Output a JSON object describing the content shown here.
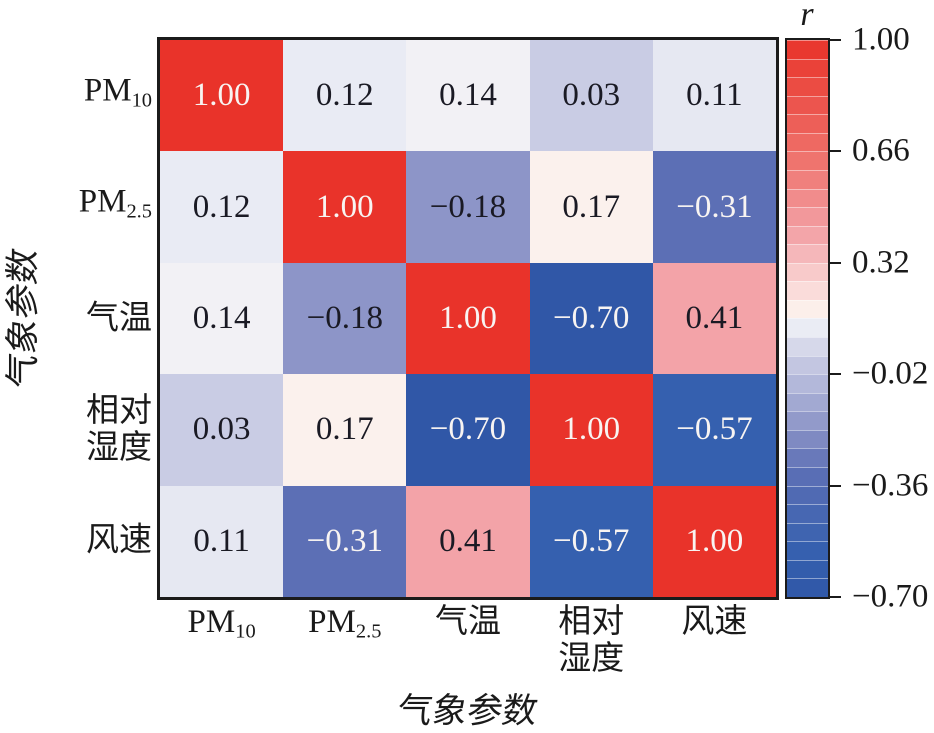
{
  "figure": {
    "background": "#ffffff",
    "colors": {
      "border": "#1b1b1b",
      "cell_text_dark": "#1a1a24",
      "cell_text_light": "#f8f4f2",
      "tick_text": "#1a1a1a",
      "accent_red": "#e9332a",
      "accent_blue": "#3057a7"
    }
  },
  "chart_data": {
    "type": "heatmap",
    "title": "",
    "xlabel": "气象参数",
    "ylabel": "气象参数",
    "categories": [
      {
        "main": "PM",
        "sub": "10"
      },
      {
        "main": "PM",
        "sub": "2.5"
      },
      {
        "main": "气温"
      },
      {
        "lines": [
          "相对",
          "湿度"
        ]
      },
      {
        "main": "风速"
      }
    ],
    "matrix": [
      [
        1.0,
        0.12,
        0.14,
        0.03,
        0.11
      ],
      [
        0.12,
        1.0,
        -0.18,
        0.17,
        -0.31
      ],
      [
        0.14,
        -0.18,
        1.0,
        -0.7,
        0.41
      ],
      [
        0.03,
        0.17,
        -0.7,
        1.0,
        -0.57
      ],
      [
        0.11,
        -0.31,
        0.41,
        -0.57,
        1.0
      ]
    ],
    "value_decimals": 2,
    "colorbar": {
      "label": "r",
      "min": -0.7,
      "max": 1.0,
      "steps": 30,
      "tick_values": [
        1.0,
        0.66,
        0.32,
        -0.02,
        -0.36,
        -0.7
      ],
      "tick_labels": [
        "1.00",
        "0.66",
        "0.32",
        "−0.02",
        "−0.36",
        "−0.70"
      ]
    },
    "colormap_anchors": [
      {
        "t": 0.0,
        "color": "#3057a7"
      },
      {
        "t": 0.08,
        "color": "#3560af"
      },
      {
        "t": 0.229,
        "color": "#5c6fb5"
      },
      {
        "t": 0.306,
        "color": "#8d95c8"
      },
      {
        "t": 0.429,
        "color": "#c9cce4"
      },
      {
        "t": 0.482,
        "color": "#e9ebf4"
      },
      {
        "t": 0.5,
        "color": "#f6f4f5"
      },
      {
        "t": 0.515,
        "color": "#fcf0eb"
      },
      {
        "t": 0.653,
        "color": "#f3a3a8"
      },
      {
        "t": 0.8,
        "color": "#ee6e67"
      },
      {
        "t": 1.0,
        "color": "#e9332a"
      }
    ],
    "text_color_rule": {
      "light_if_t_above": 0.85,
      "light_if_t_below": 0.25
    }
  }
}
